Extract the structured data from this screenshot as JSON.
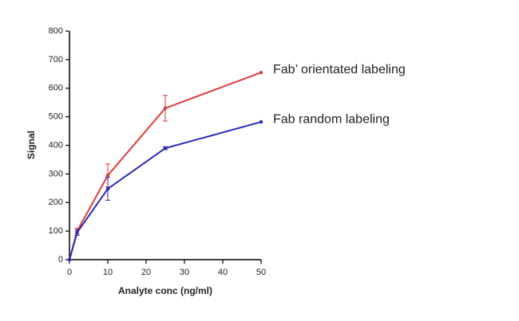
{
  "chart_data": {
    "type": "line",
    "x_label": "Analyte conc (ng/ml)",
    "y_label": "Signal",
    "x": [
      0,
      2,
      10,
      25,
      50
    ],
    "series": [
      {
        "name": "Fab’ orientated labeling",
        "color": "#e03a3a",
        "values": [
          0,
          100,
          295,
          530,
          655
        ],
        "errors": [
          0,
          10,
          40,
          45,
          0
        ]
      },
      {
        "name": "Fab random labeling",
        "color": "#2a2ab8",
        "values": [
          0,
          95,
          248,
          390,
          482
        ],
        "errors": [
          0,
          10,
          40,
          5,
          0
        ]
      }
    ],
    "xlim": [
      0,
      50
    ],
    "xticks": [
      0,
      10,
      20,
      30,
      40,
      50
    ],
    "ylim": [
      0,
      800
    ],
    "yticks": [
      0,
      100,
      200,
      300,
      400,
      500,
      600,
      700,
      800
    ]
  }
}
